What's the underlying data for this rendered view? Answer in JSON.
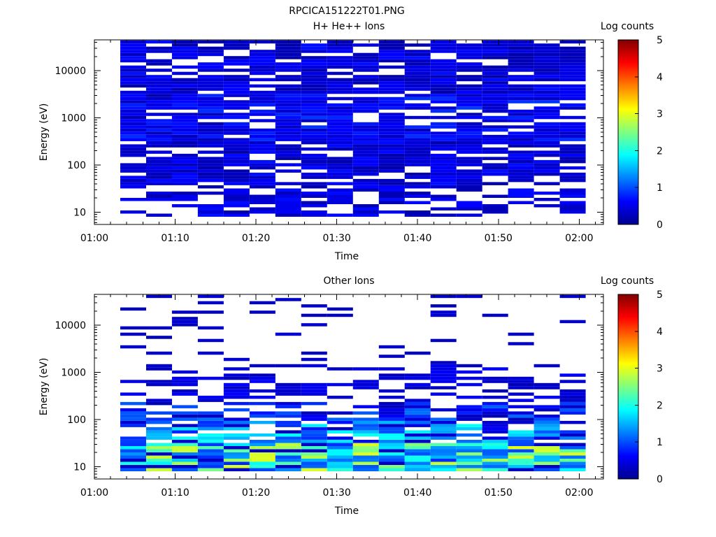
{
  "figure": {
    "title": "RPCICA151222T01.PNG"
  },
  "chart_data": [
    {
      "type": "heatmap",
      "title": "H+ He++ Ions",
      "xlabel": "Time",
      "ylabel": "Energy (eV)",
      "x_ticks": [
        "01:00",
        "01:10",
        "01:20",
        "01:30",
        "01:40",
        "01:50",
        "02:00"
      ],
      "x_range_minutes": [
        0,
        63
      ],
      "y_scale": "log",
      "y_ticks": [
        "10",
        "100",
        "1000",
        "10000"
      ],
      "y_range": [
        5.5,
        45000
      ],
      "colorbar": {
        "label": "Log counts",
        "min": 0,
        "max": 5,
        "ticks": [
          "0",
          "1",
          "2",
          "3",
          "4",
          "5"
        ]
      },
      "time_bins_start_minutes": [
        3.2,
        6.4,
        9.6,
        12.8,
        16.0,
        19.2,
        22.4,
        25.6,
        28.8,
        32.0,
        35.2,
        38.4,
        41.6,
        44.8,
        48.0,
        51.2,
        54.4,
        57.6
      ],
      "time_bin_width_minutes": 3.2,
      "profile": "hplus"
    },
    {
      "type": "heatmap",
      "title": "Other Ions",
      "xlabel": "Time",
      "ylabel": "Energy (eV)",
      "x_ticks": [
        "01:00",
        "01:10",
        "01:20",
        "01:30",
        "01:40",
        "01:50",
        "02:00"
      ],
      "x_range_minutes": [
        0,
        63
      ],
      "y_scale": "log",
      "y_ticks": [
        "10",
        "100",
        "1000",
        "10000"
      ],
      "y_range": [
        5.5,
        45000
      ],
      "colorbar": {
        "label": "Log counts",
        "min": 0,
        "max": 5,
        "ticks": [
          "0",
          "1",
          "2",
          "3",
          "4",
          "5"
        ]
      },
      "time_bins_start_minutes": [
        3.2,
        6.4,
        9.6,
        12.8,
        16.0,
        19.2,
        22.4,
        25.6,
        28.8,
        32.0,
        35.2,
        38.4,
        41.6,
        44.8,
        48.0,
        51.2,
        54.4,
        57.6
      ],
      "time_bin_width_minutes": 3.2,
      "profile": "other"
    }
  ]
}
